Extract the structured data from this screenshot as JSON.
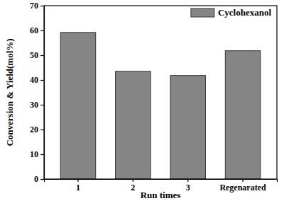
{
  "chart_data": {
    "type": "bar",
    "x_label": "Run times",
    "y_label": "Conversion & Yield(mol%)",
    "categories": [
      "1",
      "2",
      "3",
      "Regenarated"
    ],
    "series": [
      {
        "name": "Cyclohexanol",
        "color": "#858585",
        "values": [
          59.2,
          43.5,
          41.8,
          51.8
        ]
      }
    ],
    "ylim": [
      0,
      70
    ],
    "yticks": [
      0,
      10,
      20,
      30,
      40,
      50,
      60,
      70
    ],
    "legend": "upper right",
    "grid": false
  }
}
